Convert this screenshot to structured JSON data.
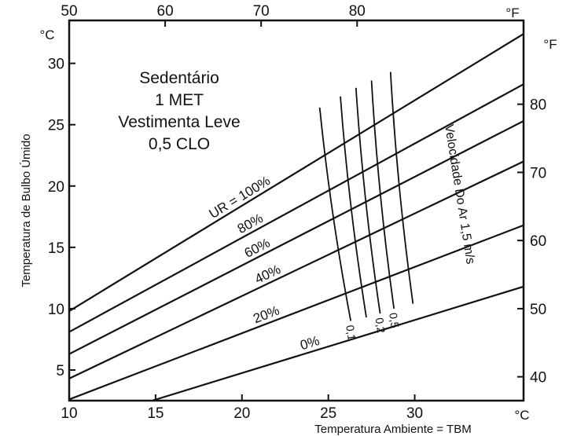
{
  "chart_data": {
    "type": "line",
    "title_lines": [
      "Sedentário",
      "1 MET",
      "Vestimenta Leve",
      "0,5 CLO"
    ],
    "xlabel": "Temperatura Ambiente = TBM",
    "ylabel": "Temperatura de Bulbo Úmido",
    "x_unit": "°C",
    "y_unit": "°C",
    "top_unit": "°F",
    "right_unit": "°F",
    "xlim": [
      10,
      36.3
    ],
    "ylim": [
      2.5,
      33.5
    ],
    "x_ticks": [
      10,
      15,
      20,
      25,
      30
    ],
    "x_tick_labels": [
      "10",
      "15",
      "20",
      "25",
      "30"
    ],
    "y_ticks": [
      5,
      10,
      15,
      20,
      25,
      30
    ],
    "y_tick_labels": [
      "5",
      "10",
      "15",
      "20",
      "25",
      "30"
    ],
    "top_ticks_f": [
      50,
      60,
      70,
      80
    ],
    "top_tick_labels": [
      "50",
      "60",
      "70",
      "80"
    ],
    "right_ticks_f": [
      40,
      50,
      60,
      70,
      80
    ],
    "right_tick_labels": [
      "40",
      "50",
      "60",
      "70",
      "80"
    ],
    "series": [
      {
        "label": "UR = 100%",
        "points": [
          [
            10,
            9.8
          ],
          [
            36.3,
            32.4
          ]
        ]
      },
      {
        "label": "80%",
        "points": [
          [
            10,
            8.1
          ],
          [
            36.3,
            28.3
          ]
        ]
      },
      {
        "label": "60%",
        "points": [
          [
            10,
            6.3
          ],
          [
            36.3,
            25.3
          ]
        ]
      },
      {
        "label": "40%",
        "points": [
          [
            10,
            4.3
          ],
          [
            36.3,
            22.0
          ]
        ]
      },
      {
        "label": "20%",
        "points": [
          [
            10,
            2.6
          ],
          [
            36.3,
            16.8
          ]
        ]
      },
      {
        "label": "0%",
        "points": [
          [
            14.8,
            2.5
          ],
          [
            36.3,
            11.8
          ]
        ]
      }
    ],
    "air_velocity_title": "Velocidade Do Ar 1,5 m/s",
    "air_velocity_lines": [
      {
        "label": "0,1",
        "points": [
          [
            24.5,
            26.4
          ],
          [
            26.3,
            9.0
          ]
        ]
      },
      {
        "label": "",
        "points": [
          [
            25.7,
            27.3
          ],
          [
            27.2,
            9.3
          ]
        ]
      },
      {
        "label": "0,2",
        "points": [
          [
            26.6,
            28.0
          ],
          [
            28.0,
            9.6
          ]
        ]
      },
      {
        "label": "0,5",
        "points": [
          [
            27.5,
            28.6
          ],
          [
            28.8,
            10.0
          ]
        ]
      },
      {
        "label": "",
        "points": [
          [
            28.6,
            29.3
          ],
          [
            29.9,
            10.4
          ]
        ]
      }
    ]
  }
}
